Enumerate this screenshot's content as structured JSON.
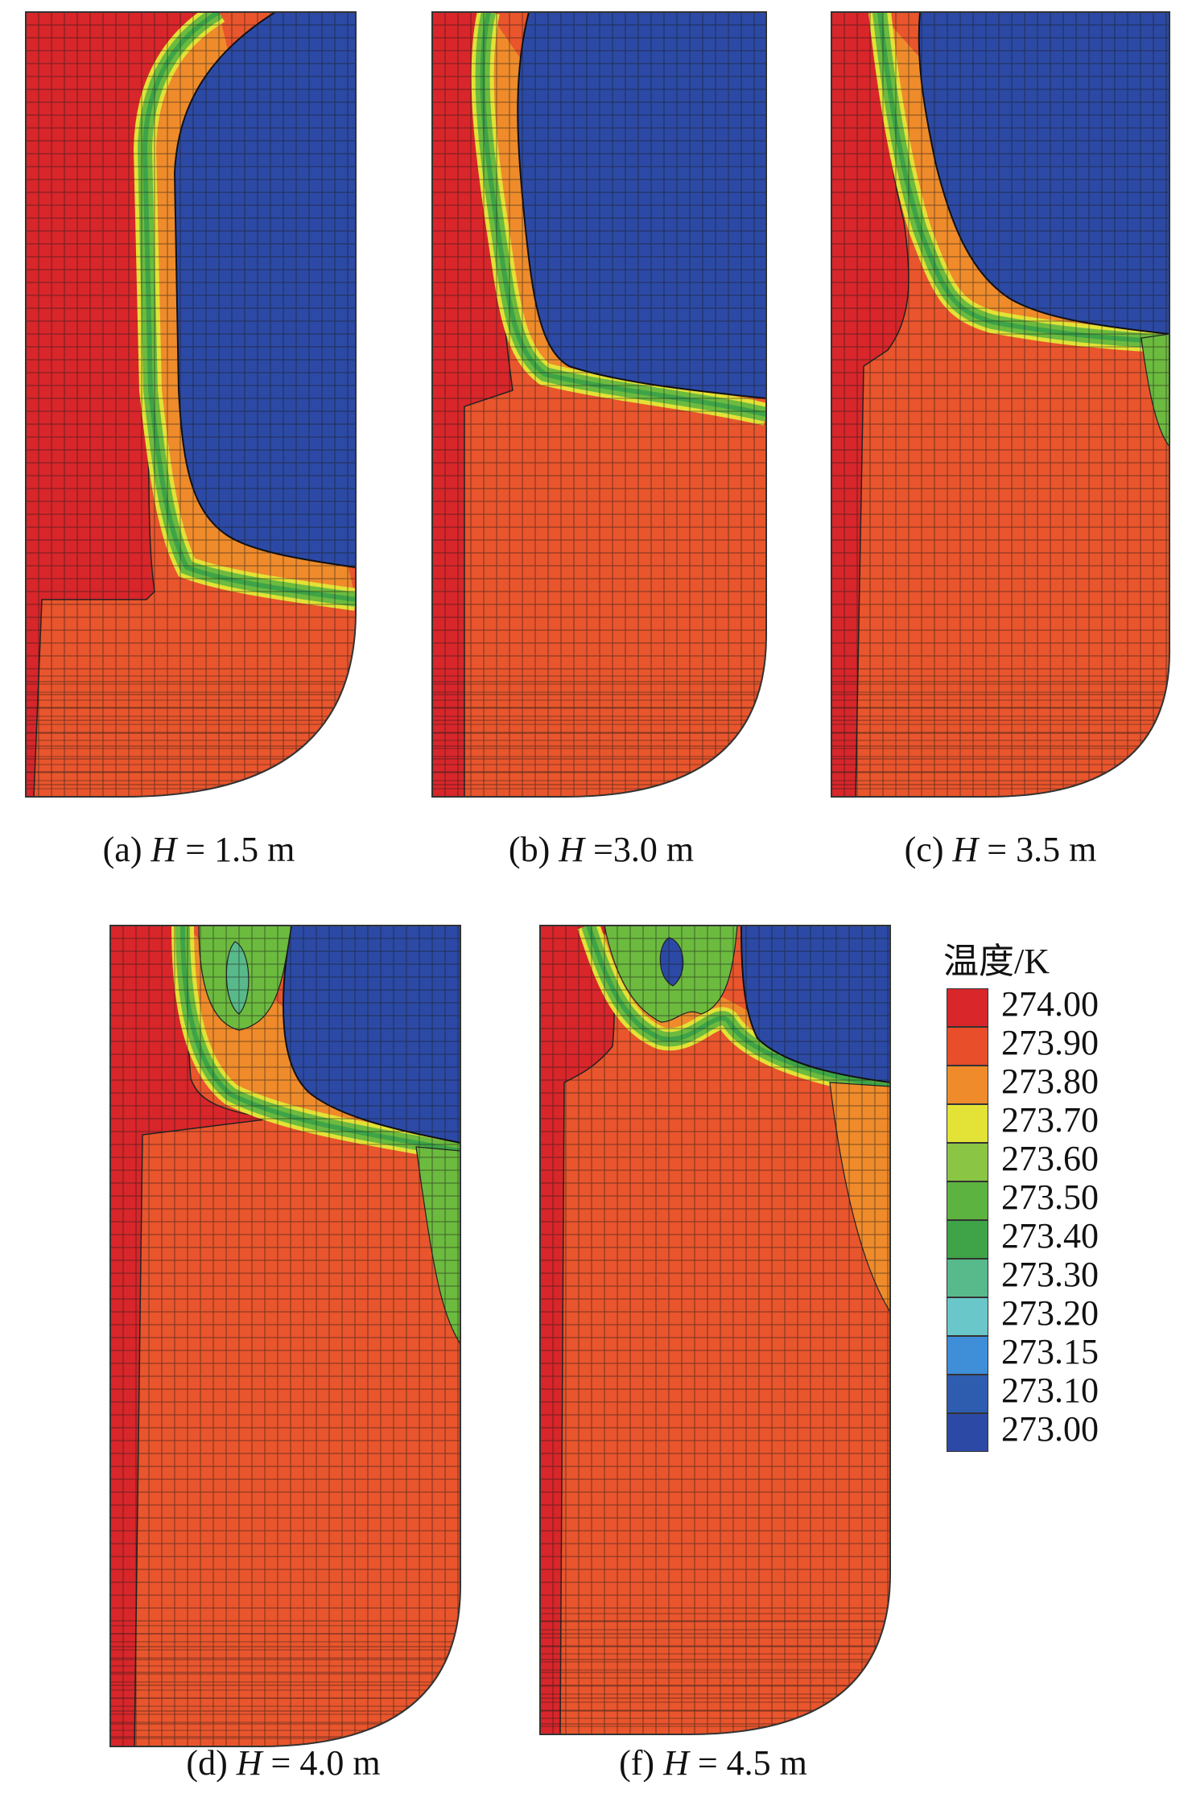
{
  "panels": [
    {
      "id": "a",
      "prefix": "(a) ",
      "var": "H",
      "suffix": " = 1.5 m"
    },
    {
      "id": "b",
      "prefix": "(b) ",
      "var": "H",
      "suffix": " =3.0 m"
    },
    {
      "id": "c",
      "prefix": "(c) ",
      "var": "H",
      "suffix": " = 3.5 m"
    },
    {
      "id": "d",
      "prefix": "(d) ",
      "var": "H",
      "suffix": " = 4.0 m"
    },
    {
      "id": "f",
      "prefix": "(f) ",
      "var": "H",
      "suffix": " = 4.5 m"
    }
  ],
  "legend": {
    "title": "温度/K",
    "levels": [
      {
        "label": "274.00",
        "color": "#d8262a"
      },
      {
        "label": "273.90",
        "color": "#e94e2b"
      },
      {
        "label": "273.80",
        "color": "#ef8b2b"
      },
      {
        "label": "273.70",
        "color": "#e3e236"
      },
      {
        "label": "273.60",
        "color": "#8bc544"
      },
      {
        "label": "273.50",
        "color": "#5db33f"
      },
      {
        "label": "273.40",
        "color": "#3ea447"
      },
      {
        "label": "273.30",
        "color": "#58b98a"
      },
      {
        "label": "273.20",
        "color": "#6ac7c9"
      },
      {
        "label": "273.15",
        "color": "#3f8ed8"
      },
      {
        "label": "273.10",
        "color": "#2e5db0"
      },
      {
        "label": "273.00",
        "color": "#2c4aa5"
      }
    ]
  },
  "colors": {
    "hot": "#d8262a",
    "warm": "#e9552c",
    "cold": "#2c4aa5",
    "band_outer": "#ef8b2b",
    "band_mid": "#e3e236",
    "band_inner": "#6cbb3f",
    "band_core": "#3ea447"
  }
}
